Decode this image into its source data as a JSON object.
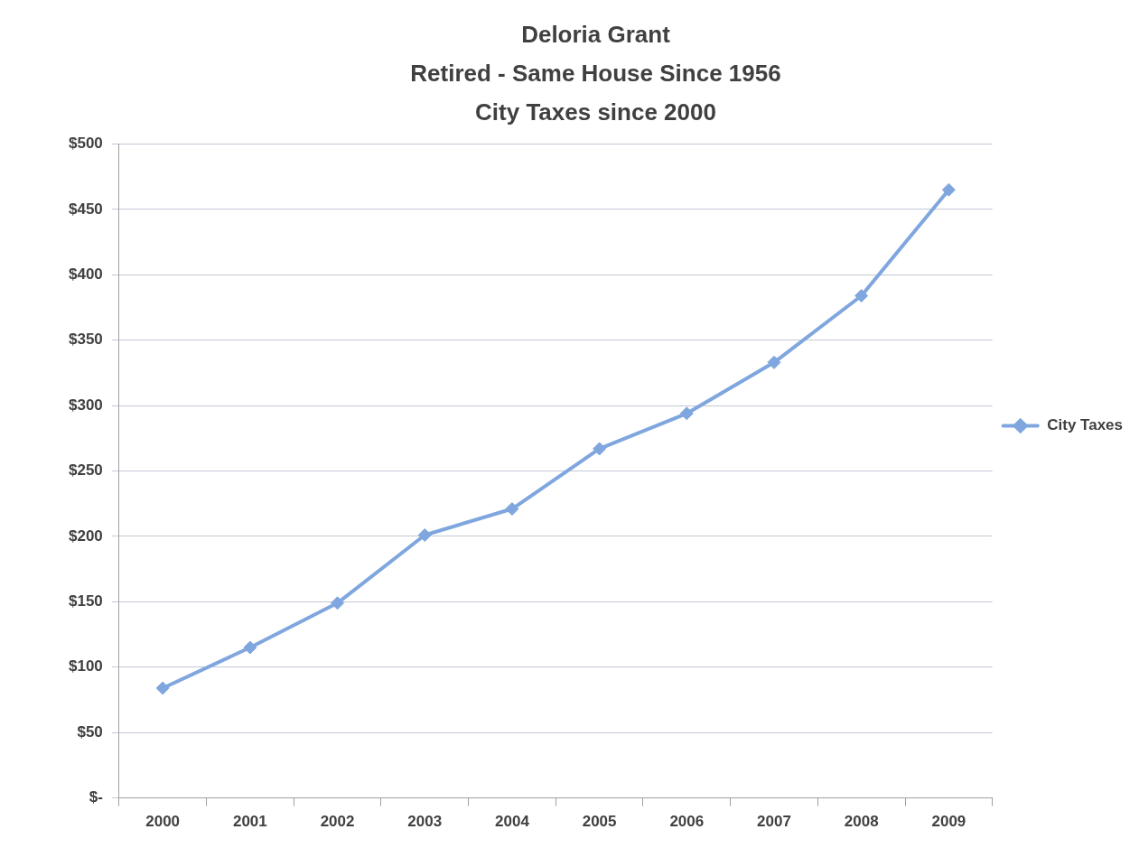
{
  "chart_data": {
    "type": "line",
    "title": "Deloria Grant\nRetired - Same House Since 1956\nCity Taxes since 2000",
    "categories": [
      "2000",
      "2001",
      "2002",
      "2003",
      "2004",
      "2005",
      "2006",
      "2007",
      "2008",
      "2009"
    ],
    "series": [
      {
        "name": "City Taxes",
        "color": "#7fa6de",
        "values": [
          84,
          115,
          149,
          201,
          221,
          267,
          294,
          333,
          384,
          465
        ]
      }
    ],
    "ylim": [
      0,
      500
    ],
    "yticks": [
      {
        "value": 0,
        "label": "$-"
      },
      {
        "value": 50,
        "label": "$50"
      },
      {
        "value": 100,
        "label": "$100"
      },
      {
        "value": 150,
        "label": "$150"
      },
      {
        "value": 200,
        "label": "$200"
      },
      {
        "value": 250,
        "label": "$250"
      },
      {
        "value": 300,
        "label": "$300"
      },
      {
        "value": 350,
        "label": "$350"
      },
      {
        "value": 400,
        "label": "$400"
      },
      {
        "value": 450,
        "label": "$450"
      },
      {
        "value": 500,
        "label": "$500"
      }
    ],
    "grid": "y",
    "legend": "right",
    "marker": "diamond",
    "line_style": "solid"
  }
}
